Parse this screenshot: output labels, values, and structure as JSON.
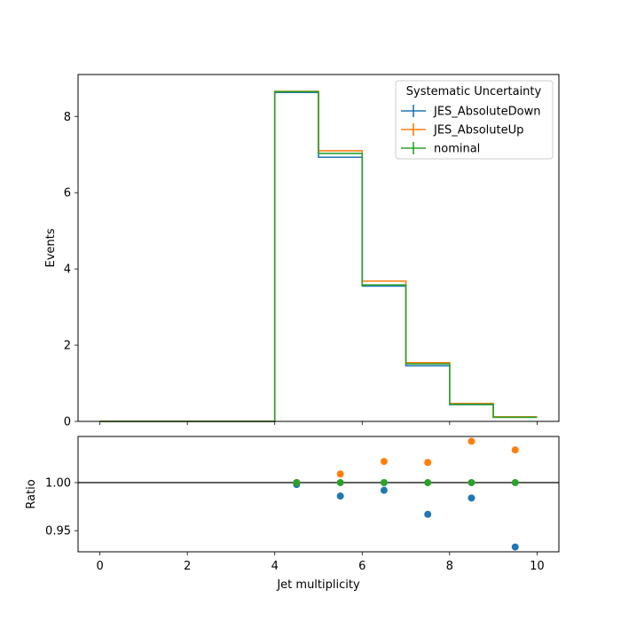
{
  "chart_data": [
    {
      "type": "step",
      "panel": "main",
      "ylabel": "Events",
      "xlim": [
        -0.5,
        10.5
      ],
      "ylim": [
        0,
        9.1
      ],
      "yticks": [
        0,
        2,
        4,
        6,
        8
      ],
      "ytick_labels": [
        "0",
        "2",
        "4",
        "6",
        "8"
      ],
      "legend": {
        "title": "Systematic Uncertainty",
        "placement": "top-right"
      },
      "bin_edges": [
        0,
        1,
        2,
        3,
        4,
        5,
        6,
        7,
        8,
        9,
        10
      ],
      "series": [
        {
          "name": "JES_AbsoluteDown",
          "color": "#1f77b4",
          "values": [
            0,
            0,
            0,
            0,
            8.63,
            6.93,
            3.55,
            1.46,
            0.44,
            0.11
          ]
        },
        {
          "name": "JES_AbsoluteUp",
          "color": "#ff7f0e",
          "values": [
            0,
            0,
            0,
            0,
            8.66,
            7.1,
            3.68,
            1.54,
            0.47,
            0.12
          ]
        },
        {
          "name": "nominal",
          "color": "#2ca02c",
          "values": [
            0,
            0,
            0,
            0,
            8.65,
            7.03,
            3.58,
            1.51,
            0.45,
            0.11
          ]
        }
      ]
    },
    {
      "type": "scatter",
      "panel": "ratio",
      "xlabel": "Jet multiplicity",
      "ylabel": "Ratio",
      "xlim": [
        -0.5,
        10.5
      ],
      "ylim": [
        0.928,
        1.048
      ],
      "xticks": [
        0,
        2,
        4,
        6,
        8,
        10
      ],
      "xtick_labels": [
        "0",
        "2",
        "4",
        "6",
        "8",
        "10"
      ],
      "yticks": [
        0.95,
        1.0
      ],
      "ytick_labels": [
        "0.95",
        "1.00"
      ],
      "reference_line": 1.0,
      "x": [
        4.5,
        5.5,
        6.5,
        7.5,
        8.5,
        9.5
      ],
      "series": [
        {
          "name": "JES_AbsoluteDown",
          "color": "#1f77b4",
          "values": [
            0.998,
            0.986,
            0.992,
            0.967,
            0.984,
            0.933
          ]
        },
        {
          "name": "JES_AbsoluteUp",
          "color": "#ff7f0e",
          "values": [
            1.0,
            1.009,
            1.022,
            1.021,
            1.043,
            1.034
          ]
        },
        {
          "name": "nominal",
          "color": "#2ca02c",
          "values": [
            1.0,
            1.0,
            1.0,
            1.0,
            1.0,
            1.0
          ]
        }
      ]
    }
  ]
}
